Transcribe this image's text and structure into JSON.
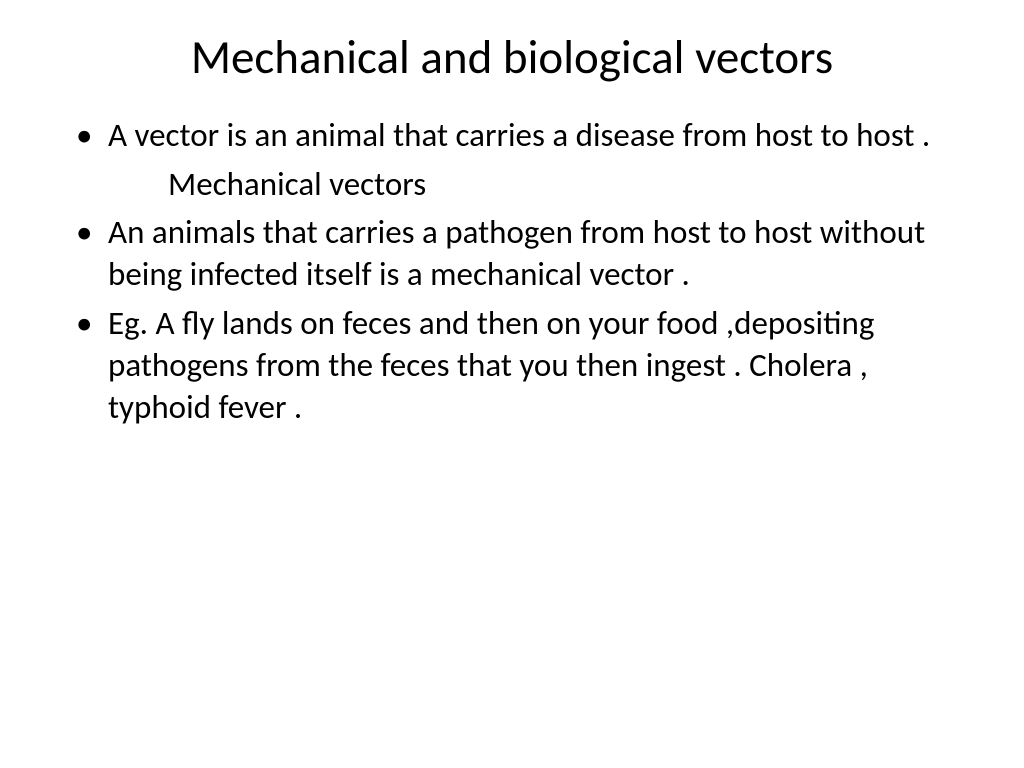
{
  "slide": {
    "title": "Mechanical and biological vectors",
    "background_color": "#ffffff",
    "text_color": "#000000",
    "title_fontsize": 47,
    "body_fontsize": 33,
    "font_family": "Calibri",
    "bullets": [
      {
        "type": "bullet",
        "text": "A vector is an animal that carries a disease from host to host ."
      },
      {
        "type": "subheading",
        "text": "Mechanical vectors"
      },
      {
        "type": "bullet",
        "text": "An animals that carries a pathogen from host to host without being infected itself is a mechanical vector ."
      },
      {
        "type": "bullet",
        "text": "Eg. A fly lands on feces and then on your food ,depositing pathogens from the feces that you then ingest . Cholera , typhoid fever ."
      }
    ]
  }
}
